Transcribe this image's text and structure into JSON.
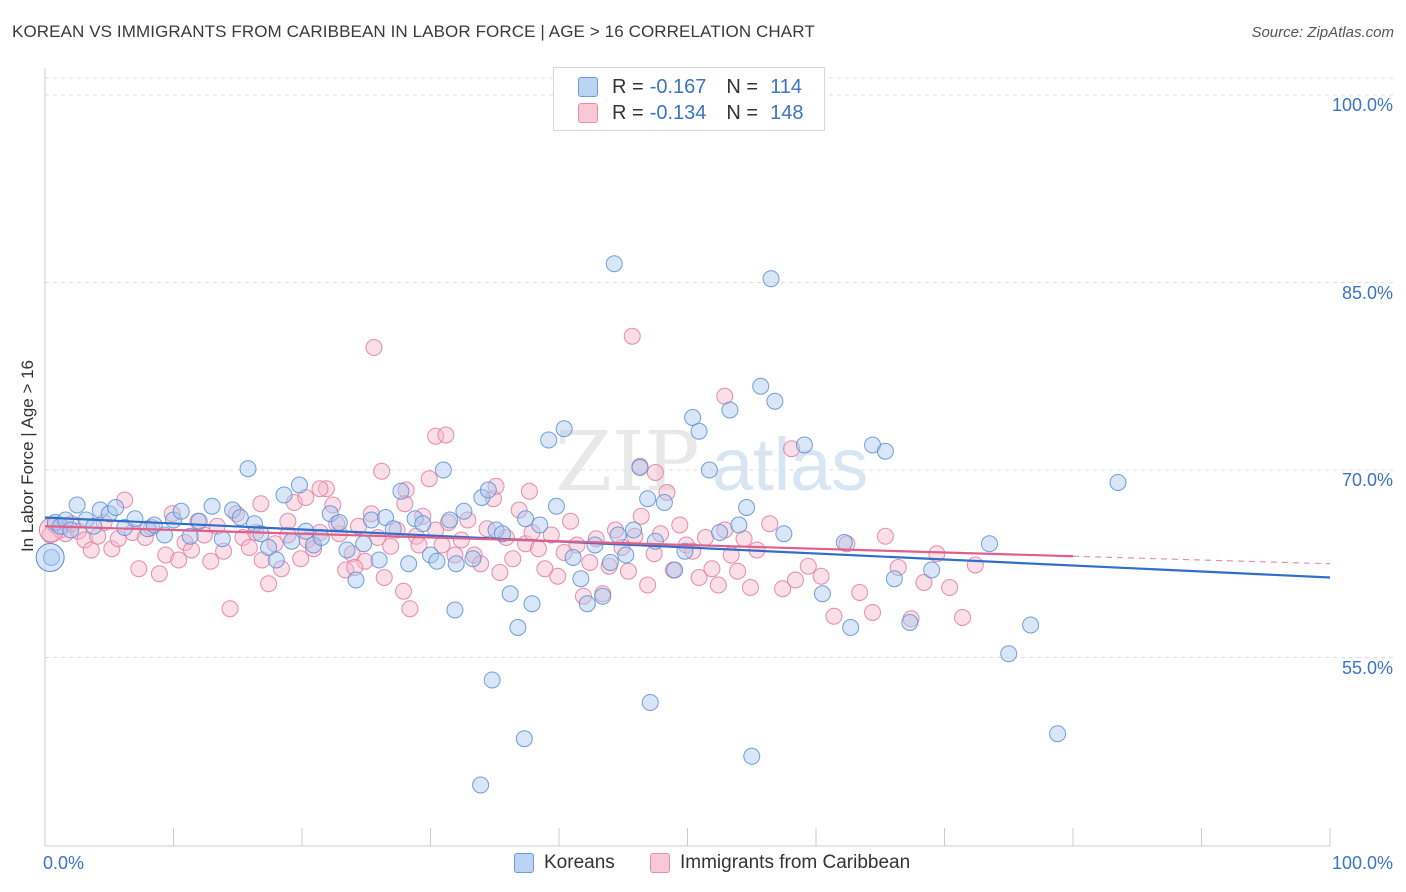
{
  "header": {
    "title": "KOREAN VS IMMIGRANTS FROM CARIBBEAN IN LABOR FORCE | AGE > 16 CORRELATION CHART",
    "source": "Source: ZipAtlas.com"
  },
  "legend_top": {
    "rows": [
      {
        "r_label": "R =",
        "r_value": "-0.167",
        "n_label": "N =",
        "n_value": "114"
      },
      {
        "r_label": "R =",
        "r_value": "-0.134",
        "n_label": "N =",
        "n_value": "148"
      }
    ]
  },
  "legend_bottom": {
    "items": [
      {
        "label": "Koreans"
      },
      {
        "label": "Immigrants from Caribbean"
      }
    ]
  },
  "watermark": {
    "part1": "ZIP",
    "part2": "atlas"
  },
  "colors": {
    "koreans_fill": "#a9c8f0",
    "koreans_stroke": "#5b8fd6",
    "koreans_line": "#2f6fc9",
    "caribbean_fill": "#f7b8cc",
    "caribbean_stroke": "#e47a9c",
    "caribbean_line": "#e0608a",
    "axis_label": "#3a74c4"
  },
  "chart_data": {
    "type": "scatter",
    "title": "KOREAN VS IMMIGRANTS FROM CARIBBEAN IN LABOR FORCE | AGE > 16 CORRELATION CHART",
    "xlabel": "",
    "ylabel": "In Labor Force | Age > 16",
    "xlim": [
      0,
      100
    ],
    "ylim": [
      40,
      102
    ],
    "x_tick_labels": [
      "0.0%",
      "100.0%"
    ],
    "y_ticks": [
      55,
      70,
      85,
      100
    ],
    "y_tick_labels": [
      "55.0%",
      "70.0%",
      "85.0%",
      "100.0%"
    ],
    "grid": "horizontal dashed",
    "legend_position": "top-center",
    "series": [
      {
        "name": "Koreans",
        "r": -0.167,
        "n": 114,
        "trend": {
          "x": [
            0,
            100
          ],
          "y": [
            66.2,
            61.4
          ]
        },
        "points": [
          [
            0.5,
            63.0
          ],
          [
            0.8,
            65.8
          ],
          [
            1.2,
            65.5
          ],
          [
            1.6,
            66.0
          ],
          [
            2.0,
            65.2
          ],
          [
            2.5,
            67.2
          ],
          [
            3.2,
            66.0
          ],
          [
            3.8,
            65.5
          ],
          [
            4.3,
            66.8
          ],
          [
            5.0,
            66.5
          ],
          [
            5.5,
            67.0
          ],
          [
            6.2,
            65.4
          ],
          [
            7.0,
            66.1
          ],
          [
            8.0,
            65.3
          ],
          [
            8.5,
            65.6
          ],
          [
            9.3,
            64.8
          ],
          [
            10.0,
            66.0
          ],
          [
            10.6,
            66.7
          ],
          [
            11.3,
            64.7
          ],
          [
            12.0,
            65.9
          ],
          [
            13.0,
            67.1
          ],
          [
            13.8,
            64.5
          ],
          [
            14.6,
            66.8
          ],
          [
            15.2,
            66.2
          ],
          [
            15.8,
            70.1
          ],
          [
            16.3,
            65.7
          ],
          [
            16.8,
            64.9
          ],
          [
            17.4,
            63.8
          ],
          [
            18.0,
            62.8
          ],
          [
            18.6,
            68.0
          ],
          [
            19.2,
            64.3
          ],
          [
            19.8,
            68.8
          ],
          [
            20.3,
            65.1
          ],
          [
            20.9,
            64.0
          ],
          [
            21.5,
            64.6
          ],
          [
            22.2,
            66.5
          ],
          [
            22.9,
            65.8
          ],
          [
            23.5,
            63.6
          ],
          [
            24.2,
            61.2
          ],
          [
            24.8,
            64.1
          ],
          [
            25.4,
            66.0
          ],
          [
            26.0,
            62.8
          ],
          [
            26.5,
            66.2
          ],
          [
            27.1,
            65.3
          ],
          [
            27.7,
            68.3
          ],
          [
            28.3,
            62.5
          ],
          [
            28.8,
            66.1
          ],
          [
            29.4,
            65.7
          ],
          [
            30.0,
            63.2
          ],
          [
            30.5,
            62.7
          ],
          [
            31.0,
            70.0
          ],
          [
            31.5,
            66.0
          ],
          [
            32.0,
            62.5
          ],
          [
            32.6,
            66.7
          ],
          [
            33.3,
            62.9
          ],
          [
            34.0,
            67.8
          ],
          [
            34.5,
            68.4
          ],
          [
            35.1,
            65.2
          ],
          [
            35.6,
            64.9
          ],
          [
            36.2,
            60.1
          ],
          [
            36.8,
            57.4
          ],
          [
            37.4,
            66.1
          ],
          [
            37.9,
            59.3
          ],
          [
            38.5,
            65.6
          ],
          [
            39.2,
            72.4
          ],
          [
            39.8,
            67.1
          ],
          [
            40.4,
            73.3
          ],
          [
            41.1,
            63.0
          ],
          [
            41.7,
            61.3
          ],
          [
            42.2,
            59.3
          ],
          [
            42.8,
            64.0
          ],
          [
            43.4,
            59.9
          ],
          [
            44.0,
            62.6
          ],
          [
            44.6,
            64.8
          ],
          [
            45.2,
            63.2
          ],
          [
            45.8,
            65.2
          ],
          [
            46.3,
            70.2
          ],
          [
            46.9,
            67.7
          ],
          [
            47.5,
            64.3
          ],
          [
            48.2,
            67.4
          ],
          [
            49.0,
            62.0
          ],
          [
            49.8,
            63.5
          ],
          [
            50.4,
            74.2
          ],
          [
            50.9,
            73.1
          ],
          [
            51.7,
            70.0
          ],
          [
            52.5,
            65.0
          ],
          [
            53.3,
            74.8
          ],
          [
            54.0,
            65.6
          ],
          [
            54.6,
            67.0
          ],
          [
            55.7,
            76.7
          ],
          [
            56.8,
            75.5
          ],
          [
            57.5,
            64.9
          ],
          [
            59.1,
            72.0
          ],
          [
            60.5,
            60.1
          ],
          [
            62.2,
            64.2
          ],
          [
            62.7,
            57.4
          ],
          [
            64.4,
            72.0
          ],
          [
            65.4,
            71.5
          ],
          [
            66.1,
            61.3
          ],
          [
            67.3,
            57.8
          ],
          [
            69.0,
            62.0
          ],
          [
            73.5,
            64.1
          ],
          [
            75.0,
            55.3
          ],
          [
            76.7,
            57.6
          ],
          [
            83.5,
            69.0
          ],
          [
            37.3,
            48.5
          ],
          [
            34.8,
            53.2
          ],
          [
            33.9,
            44.8
          ],
          [
            55.0,
            47.1
          ],
          [
            78.8,
            48.9
          ],
          [
            44.3,
            86.5
          ],
          [
            56.5,
            85.3
          ],
          [
            47.1,
            51.4
          ],
          [
            31.9,
            58.8
          ]
        ]
      },
      {
        "name": "Immigrants from Caribbean",
        "r": -0.134,
        "n": 148,
        "trend": {
          "x": [
            0,
            80
          ],
          "y": [
            65.5,
            63.1
          ]
        },
        "trend_dashed_extension": {
          "x": [
            80,
            100
          ],
          "y": [
            63.1,
            62.5
          ]
        },
        "points": [
          [
            0.4,
            64.8
          ],
          [
            0.8,
            65.6
          ],
          [
            1.2,
            65.2
          ],
          [
            1.6,
            64.9
          ],
          [
            2.1,
            65.7
          ],
          [
            2.6,
            65.1
          ],
          [
            3.1,
            64.4
          ],
          [
            3.6,
            63.6
          ],
          [
            4.1,
            64.7
          ],
          [
            4.6,
            65.8
          ],
          [
            5.2,
            63.7
          ],
          [
            5.7,
            64.5
          ],
          [
            6.2,
            67.6
          ],
          [
            6.8,
            65.0
          ],
          [
            7.3,
            62.1
          ],
          [
            7.8,
            64.6
          ],
          [
            8.3,
            65.4
          ],
          [
            8.9,
            61.7
          ],
          [
            9.4,
            63.2
          ],
          [
            9.9,
            66.5
          ],
          [
            10.4,
            62.8
          ],
          [
            10.9,
            64.2
          ],
          [
            11.4,
            63.6
          ],
          [
            11.9,
            65.9
          ],
          [
            12.4,
            64.8
          ],
          [
            12.9,
            62.7
          ],
          [
            13.4,
            65.5
          ],
          [
            13.9,
            63.5
          ],
          [
            14.4,
            58.9
          ],
          [
            14.9,
            66.5
          ],
          [
            15.4,
            64.6
          ],
          [
            15.9,
            63.8
          ],
          [
            16.4,
            65.0
          ],
          [
            16.9,
            62.8
          ],
          [
            17.4,
            60.9
          ],
          [
            17.9,
            64.1
          ],
          [
            18.4,
            62.1
          ],
          [
            18.9,
            64.8
          ],
          [
            19.4,
            67.4
          ],
          [
            19.9,
            62.9
          ],
          [
            20.4,
            64.4
          ],
          [
            20.9,
            63.7
          ],
          [
            21.4,
            65.0
          ],
          [
            21.9,
            68.5
          ],
          [
            22.4,
            67.2
          ],
          [
            22.9,
            64.9
          ],
          [
            23.4,
            62.0
          ],
          [
            23.9,
            63.3
          ],
          [
            24.4,
            65.5
          ],
          [
            24.9,
            62.7
          ],
          [
            25.4,
            66.5
          ],
          [
            25.9,
            64.6
          ],
          [
            26.4,
            61.4
          ],
          [
            26.9,
            63.9
          ],
          [
            27.4,
            65.2
          ],
          [
            27.9,
            60.3
          ],
          [
            28.4,
            58.9
          ],
          [
            28.9,
            64.7
          ],
          [
            29.4,
            66.3
          ],
          [
            29.9,
            69.3
          ],
          [
            30.4,
            65.2
          ],
          [
            30.9,
            64.0
          ],
          [
            31.4,
            65.8
          ],
          [
            31.9,
            63.2
          ],
          [
            32.4,
            64.4
          ],
          [
            32.9,
            66.0
          ],
          [
            33.4,
            63.2
          ],
          [
            33.9,
            62.5
          ],
          [
            34.4,
            65.3
          ],
          [
            34.9,
            67.7
          ],
          [
            35.4,
            61.8
          ],
          [
            35.9,
            64.6
          ],
          [
            36.4,
            62.9
          ],
          [
            36.9,
            66.8
          ],
          [
            37.4,
            64.1
          ],
          [
            37.9,
            65.0
          ],
          [
            38.4,
            63.7
          ],
          [
            38.9,
            62.1
          ],
          [
            39.4,
            64.8
          ],
          [
            39.9,
            61.5
          ],
          [
            40.4,
            63.4
          ],
          [
            40.9,
            65.9
          ],
          [
            41.4,
            64.0
          ],
          [
            41.9,
            59.9
          ],
          [
            42.4,
            62.6
          ],
          [
            42.9,
            64.5
          ],
          [
            43.4,
            60.1
          ],
          [
            43.9,
            62.3
          ],
          [
            44.4,
            65.2
          ],
          [
            44.9,
            63.8
          ],
          [
            45.4,
            61.9
          ],
          [
            45.9,
            64.7
          ],
          [
            46.4,
            66.3
          ],
          [
            46.9,
            60.8
          ],
          [
            47.4,
            63.3
          ],
          [
            47.9,
            64.9
          ],
          [
            48.4,
            68.2
          ],
          [
            48.9,
            62.0
          ],
          [
            49.4,
            65.6
          ],
          [
            49.9,
            64.0
          ],
          [
            50.4,
            63.5
          ],
          [
            50.9,
            61.4
          ],
          [
            51.4,
            64.6
          ],
          [
            51.9,
            62.1
          ],
          [
            52.4,
            60.8
          ],
          [
            52.9,
            65.2
          ],
          [
            53.4,
            63.2
          ],
          [
            53.9,
            61.9
          ],
          [
            54.4,
            64.5
          ],
          [
            54.9,
            60.6
          ],
          [
            55.4,
            63.6
          ],
          [
            56.4,
            65.7
          ],
          [
            57.4,
            60.5
          ],
          [
            58.4,
            61.2
          ],
          [
            59.4,
            62.3
          ],
          [
            60.4,
            61.5
          ],
          [
            61.4,
            58.3
          ],
          [
            62.4,
            64.1
          ],
          [
            63.4,
            60.2
          ],
          [
            64.4,
            58.6
          ],
          [
            65.4,
            64.7
          ],
          [
            66.4,
            62.2
          ],
          [
            67.4,
            58.1
          ],
          [
            68.4,
            61.0
          ],
          [
            69.4,
            63.3
          ],
          [
            70.4,
            60.6
          ],
          [
            71.4,
            58.2
          ],
          [
            72.4,
            62.4
          ],
          [
            25.6,
            79.8
          ],
          [
            45.7,
            80.7
          ],
          [
            52.9,
            75.9
          ],
          [
            30.4,
            72.7
          ],
          [
            31.2,
            72.8
          ],
          [
            26.2,
            69.9
          ],
          [
            47.5,
            69.8
          ],
          [
            58.1,
            71.7
          ],
          [
            21.4,
            68.5
          ],
          [
            20.3,
            67.8
          ],
          [
            28.1,
            68.4
          ],
          [
            35.1,
            68.7
          ],
          [
            37.7,
            68.3
          ],
          [
            29.1,
            64.0
          ],
          [
            22.7,
            65.7
          ],
          [
            28.0,
            67.3
          ],
          [
            24.1,
            62.2
          ],
          [
            46.3,
            70.3
          ],
          [
            16.8,
            67.3
          ],
          [
            18.9,
            65.9
          ]
        ]
      }
    ]
  }
}
